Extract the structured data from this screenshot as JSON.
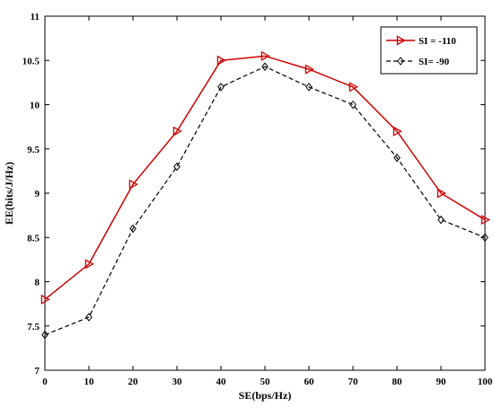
{
  "chart_data": {
    "type": "line",
    "title": "",
    "xlabel": "SE(bps/Hz)",
    "ylabel": "EE(bits/J/Hz)",
    "xlim": [
      0,
      100
    ],
    "ylim": [
      7,
      11
    ],
    "x_ticks": [
      "0",
      "10",
      "20",
      "30",
      "40",
      "50",
      "60",
      "70",
      "80",
      "90",
      "100"
    ],
    "y_ticks": [
      "7",
      "7.5",
      "8",
      "8.5",
      "9",
      "9.5",
      "10",
      "10.5",
      "11"
    ],
    "grid": false,
    "legend_position": "top-right",
    "x": [
      0,
      10,
      20,
      30,
      40,
      50,
      60,
      70,
      80,
      90,
      100
    ],
    "series": [
      {
        "name": "SI = -110",
        "values": [
          7.8,
          8.2,
          9.1,
          9.7,
          10.5,
          10.55,
          10.4,
          10.2,
          9.7,
          9.0,
          8.7
        ],
        "color": "#cc0000",
        "line_style": "solid",
        "marker": "triangle-right"
      },
      {
        "name": "SI=  -90",
        "values": [
          7.4,
          7.6,
          8.6,
          9.3,
          10.2,
          10.43,
          10.2,
          10.0,
          9.4,
          8.7,
          8.5
        ],
        "color": "#000000",
        "line_style": "dashed",
        "marker": "diamond"
      }
    ]
  }
}
